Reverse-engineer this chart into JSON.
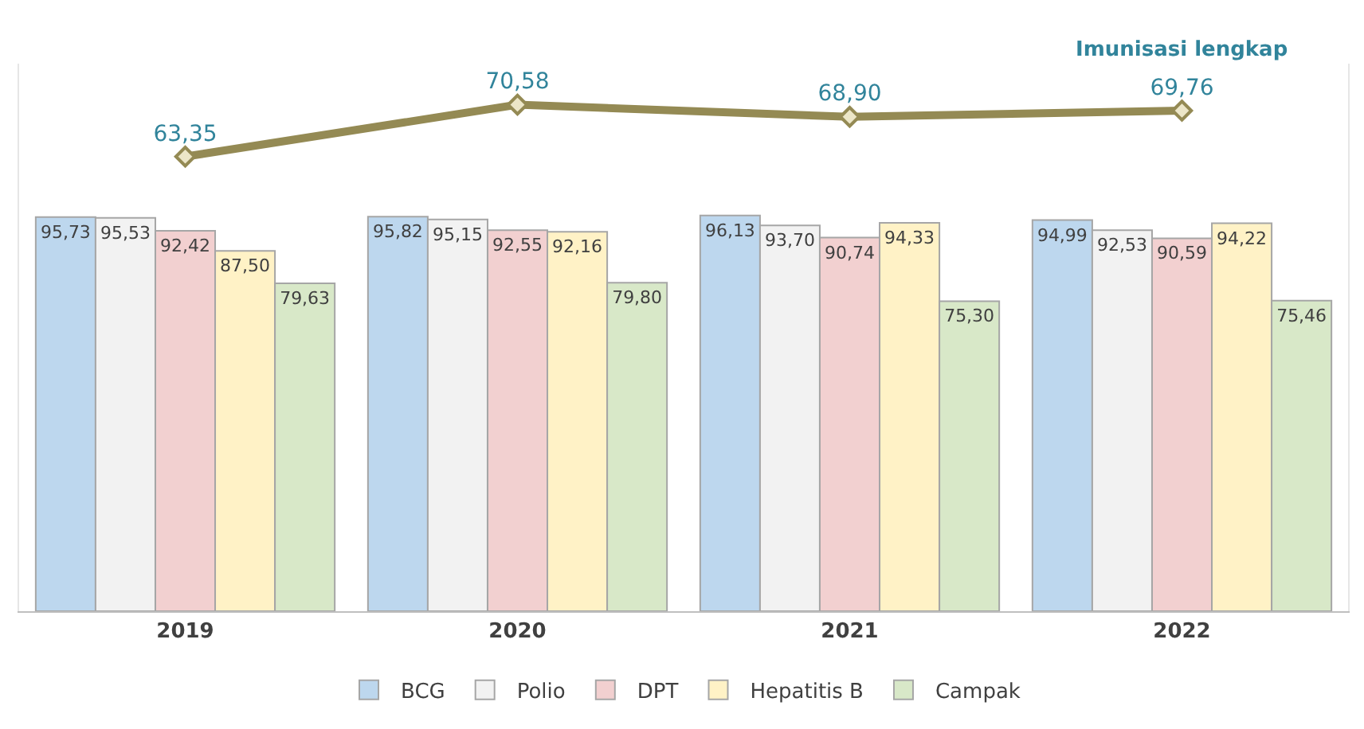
{
  "chart_data": {
    "type": "bar",
    "categories": [
      "2019",
      "2020",
      "2021",
      "2022"
    ],
    "series": [
      {
        "name": "BCG",
        "color": "#bdd7ee",
        "values": [
          95.73,
          95.82,
          96.13,
          94.99
        ],
        "value_labels": [
          "95,73",
          "95,82",
          "96,13",
          "94,99"
        ]
      },
      {
        "name": "Polio",
        "color": "#f2f2f2",
        "values": [
          95.53,
          95.15,
          93.7,
          92.53
        ],
        "value_labels": [
          "95,53",
          "95,15",
          "93,70",
          "92,53"
        ]
      },
      {
        "name": "DPT",
        "color": "#f2d0d0",
        "values": [
          92.42,
          92.55,
          90.74,
          90.59
        ],
        "value_labels": [
          "92,42",
          "92,55",
          "90,74",
          "90,59"
        ]
      },
      {
        "name": "Hepatitis B",
        "color": "#fff2c6",
        "values": [
          87.5,
          92.16,
          94.33,
          94.22
        ],
        "value_labels": [
          "87,50",
          "92,16",
          "94,33",
          "94,22"
        ]
      },
      {
        "name": "Campak",
        "color": "#d8e8c8",
        "values": [
          79.63,
          79.8,
          75.3,
          75.46
        ],
        "value_labels": [
          "79,63",
          "79,80",
          "75,30",
          "75,46"
        ]
      },
      {
        "name": "Imunisasi lengkap",
        "type": "line",
        "axis": "y2",
        "color": "#948a54",
        "marker": "diamond",
        "values": [
          63.35,
          70.58,
          68.9,
          69.76
        ],
        "value_labels": [
          "63,35",
          "70,58",
          "68,90",
          "69,76"
        ]
      }
    ],
    "relative": false,
    "ylim": [
      0,
      133
    ],
    "y2lim": [
      0,
      76.3
    ],
    "legend": "bottom"
  }
}
